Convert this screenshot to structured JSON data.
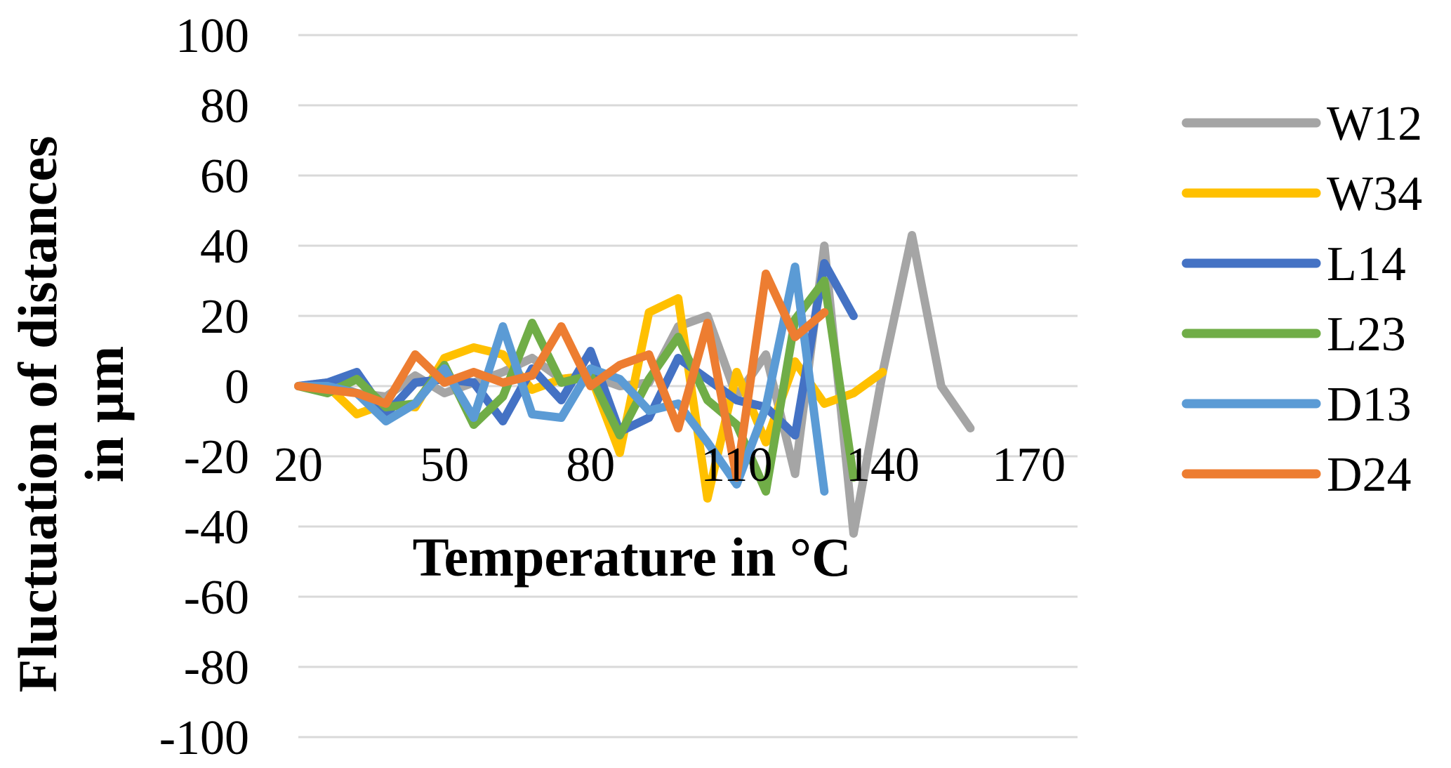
{
  "chart_data": {
    "type": "line",
    "title": "",
    "xlabel": "Temperature in °C",
    "ylabel": "Fluctuation of distances in µm",
    "ylabel_lines": [
      "Fluctuation of distances",
      "in µm"
    ],
    "ylim": [
      -100,
      100
    ],
    "yticks": [
      100,
      80,
      60,
      40,
      20,
      0,
      -20,
      -40,
      -60,
      -80,
      -100
    ],
    "y_tick_labels": [
      "100",
      "80",
      "60",
      "40",
      "20",
      "0",
      "-20",
      "-40",
      "-60",
      "-80",
      "-100"
    ],
    "xlim": [
      20,
      180
    ],
    "xticks": [
      20,
      50,
      80,
      110,
      140,
      170
    ],
    "x_tick_labels": [
      "20",
      "50",
      "80",
      "110",
      "140",
      "170"
    ],
    "grid": true,
    "legend_position": "right",
    "x": [
      20,
      26,
      32,
      38,
      44,
      50,
      56,
      62,
      68,
      74,
      80,
      86,
      92,
      98,
      104,
      110,
      116,
      122,
      128,
      134,
      140,
      146,
      152,
      158,
      164,
      170
    ],
    "series": [
      {
        "name": "W12",
        "color": "#a5a5a5",
        "values": [
          0,
          1,
          -2,
          -3,
          3,
          -2,
          1,
          4,
          8,
          2,
          3,
          0,
          1,
          17,
          20,
          -3,
          9,
          -25,
          40,
          -42,
          4,
          43,
          0,
          -12,
          null,
          null
        ]
      },
      {
        "name": "W34",
        "color": "#ffc000",
        "values": [
          0,
          0,
          -8,
          -5,
          -6,
          8,
          11,
          9,
          -1,
          2,
          3,
          -19,
          21,
          25,
          -32,
          4,
          -16,
          7,
          -5,
          -2,
          4,
          null,
          null,
          null,
          null,
          null
        ]
      },
      {
        "name": "L14",
        "color": "#4472c4",
        "values": [
          0,
          1,
          4,
          -8,
          1,
          2,
          1,
          -10,
          5,
          -4,
          10,
          -13,
          -9,
          8,
          2,
          -4,
          -6,
          -14,
          35,
          20,
          null,
          null,
          null,
          null,
          null,
          null
        ]
      },
      {
        "name": "L23",
        "color": "#70ad47",
        "values": [
          0,
          -2,
          2,
          -6,
          -5,
          6,
          -11,
          -3,
          18,
          1,
          3,
          -14,
          2,
          14,
          -4,
          -11,
          -30,
          19,
          30,
          -26,
          null,
          null,
          null,
          null,
          null,
          null
        ]
      },
      {
        "name": "D13",
        "color": "#5b9bd5",
        "values": [
          0,
          0,
          -2,
          -10,
          -5,
          5,
          -9,
          17,
          -8,
          -9,
          5,
          2,
          -7,
          -5,
          -16,
          -28,
          -6,
          34,
          -30,
          null,
          null,
          null,
          null,
          null,
          null,
          null
        ]
      },
      {
        "name": "D24",
        "color": "#ed7d31",
        "values": [
          0,
          -1,
          -2,
          -5,
          9,
          1,
          4,
          1,
          3,
          17,
          0,
          6,
          9,
          -12,
          18,
          -26,
          32,
          14,
          21,
          null,
          null,
          null,
          null,
          null,
          null,
          null
        ]
      }
    ]
  }
}
